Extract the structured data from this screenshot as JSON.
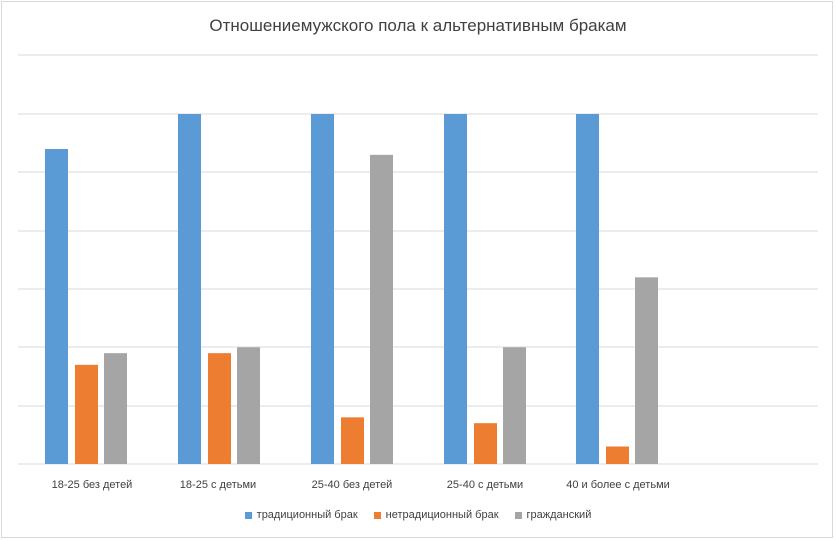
{
  "chart_data": {
    "type": "bar",
    "title": "Отношениемужского пола к альтернативным бракам",
    "categories": [
      "18-25 без детей",
      "18-25 с детьми",
      "25-40 без детей",
      "25-40 с детьми",
      "40 и более с детьми"
    ],
    "series": [
      {
        "name": "традиционный брак",
        "color": "#5b9bd5",
        "values": [
          54,
          60,
          60,
          60,
          60
        ]
      },
      {
        "name": "нетрадиционный брак",
        "color": "#ed7d31",
        "values": [
          17,
          19,
          8,
          7,
          3
        ]
      },
      {
        "name": "гражданский",
        "color": "#a5a5a5",
        "values": [
          19,
          20,
          53,
          20,
          32
        ]
      }
    ],
    "ylim": [
      0,
      60
    ],
    "grid": true,
    "legend": "bottom"
  }
}
